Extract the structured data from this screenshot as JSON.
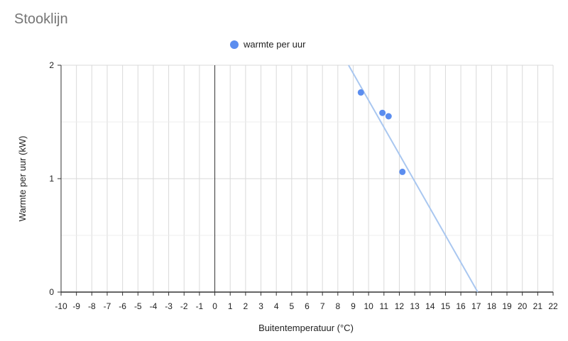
{
  "chart_data": {
    "type": "scatter",
    "title": "Stooklijn",
    "xlabel": "Buitentemperatuur (°C)",
    "ylabel": "Warmte per uur (kW)",
    "xlim": [
      -10,
      22
    ],
    "ylim": [
      0,
      2
    ],
    "x_ticks": [
      -10,
      -9,
      -8,
      -7,
      -6,
      -5,
      -4,
      -3,
      -2,
      -1,
      0,
      1,
      2,
      3,
      4,
      5,
      6,
      7,
      8,
      9,
      10,
      11,
      12,
      13,
      14,
      15,
      16,
      17,
      18,
      19,
      20,
      21,
      22
    ],
    "y_ticks": [
      0,
      1,
      2
    ],
    "grid": true,
    "legend_position": "top",
    "series": [
      {
        "name": "warmte per uur",
        "color": "#5b8def",
        "points": [
          {
            "x": 9.5,
            "y": 1.76
          },
          {
            "x": 10.9,
            "y": 1.58
          },
          {
            "x": 11.3,
            "y": 1.55
          },
          {
            "x": 12.2,
            "y": 1.06
          }
        ]
      }
    ],
    "trendline": {
      "color": "#a9c7f0",
      "points": [
        {
          "x": 8.7,
          "y": 2.0
        },
        {
          "x": 17.1,
          "y": 0.0
        }
      ]
    }
  }
}
